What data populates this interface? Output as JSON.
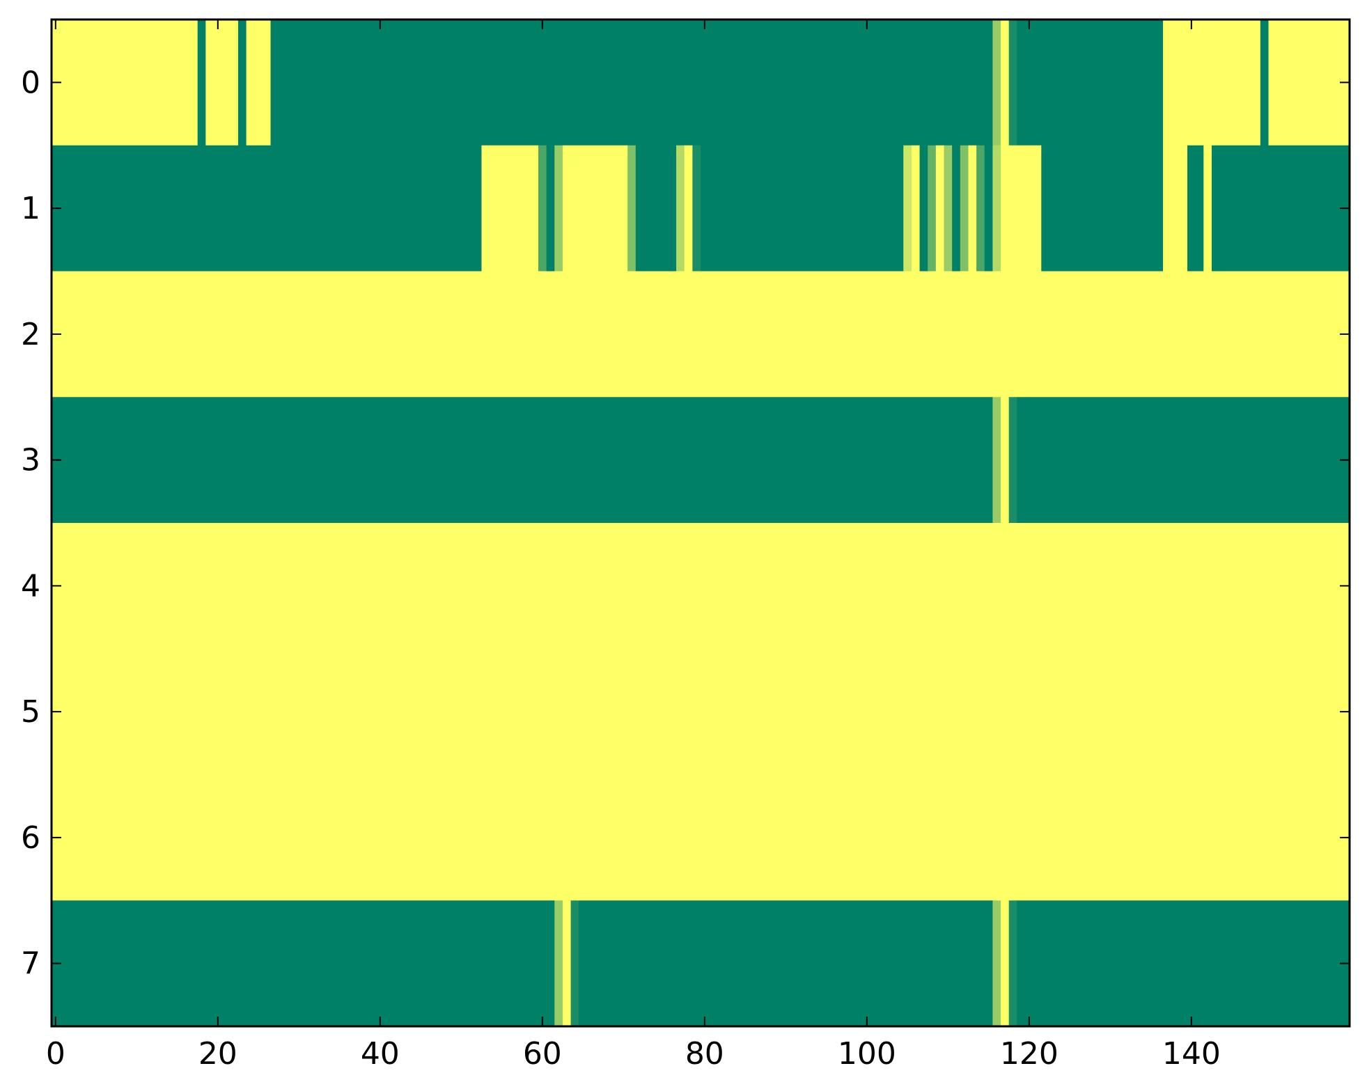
{
  "chart_data": {
    "type": "heatmap",
    "title": "",
    "xlabel": "",
    "ylabel": "",
    "x_range": [
      -0.5,
      159.5
    ],
    "y_range": [
      -0.5,
      7.5
    ],
    "y_inverted": true,
    "x_ticks": [
      0,
      20,
      40,
      60,
      80,
      100,
      120,
      140
    ],
    "x_tick_labels": [
      "0",
      "20",
      "40",
      "60",
      "80",
      "100",
      "120",
      "140"
    ],
    "y_ticks": [
      0,
      1,
      2,
      3,
      4,
      5,
      6,
      7
    ],
    "y_tick_labels": [
      "0",
      "1",
      "2",
      "3",
      "4",
      "5",
      "6",
      "7"
    ],
    "grid": false,
    "legend": "none",
    "colormap": "summer",
    "colors": {
      "low": "#008066",
      "high": "#ffff66"
    },
    "value_range": [
      0,
      1
    ],
    "n_columns": 160,
    "rows": [
      {
        "row": 0,
        "segments": [
          {
            "start": 0,
            "end": 17,
            "value": 1
          },
          {
            "start": 18,
            "end": 18,
            "value": 0
          },
          {
            "start": 19,
            "end": 22,
            "value": 1
          },
          {
            "start": 23,
            "end": 23,
            "value": 0
          },
          {
            "start": 24,
            "end": 26,
            "value": 1
          },
          {
            "start": 27,
            "end": 115,
            "value": 0
          },
          {
            "start": 116,
            "end": 116,
            "value": 0.6
          },
          {
            "start": 117,
            "end": 117,
            "value": 1
          },
          {
            "start": 118,
            "end": 118,
            "value": 0.1
          },
          {
            "start": 119,
            "end": 136,
            "value": 0
          },
          {
            "start": 137,
            "end": 148,
            "value": 1
          },
          {
            "start": 149,
            "end": 149,
            "value": 0
          },
          {
            "start": 150,
            "end": 159,
            "value": 1
          }
        ]
      },
      {
        "row": 1,
        "segments": [
          {
            "start": 0,
            "end": 52,
            "value": 0
          },
          {
            "start": 53,
            "end": 59,
            "value": 1
          },
          {
            "start": 60,
            "end": 60,
            "value": 0.3
          },
          {
            "start": 61,
            "end": 61,
            "value": 0
          },
          {
            "start": 62,
            "end": 62,
            "value": 0.6
          },
          {
            "start": 63,
            "end": 70,
            "value": 1
          },
          {
            "start": 71,
            "end": 71,
            "value": 0.5
          },
          {
            "start": 72,
            "end": 76,
            "value": 0
          },
          {
            "start": 77,
            "end": 77,
            "value": 0.7
          },
          {
            "start": 78,
            "end": 78,
            "value": 1
          },
          {
            "start": 79,
            "end": 79,
            "value": 0.1
          },
          {
            "start": 80,
            "end": 104,
            "value": 0
          },
          {
            "start": 105,
            "end": 105,
            "value": 0.8
          },
          {
            "start": 106,
            "end": 106,
            "value": 1
          },
          {
            "start": 107,
            "end": 107,
            "value": 0
          },
          {
            "start": 108,
            "end": 108,
            "value": 0.4
          },
          {
            "start": 109,
            "end": 109,
            "value": 1
          },
          {
            "start": 110,
            "end": 110,
            "value": 0.6
          },
          {
            "start": 111,
            "end": 111,
            "value": 0
          },
          {
            "start": 112,
            "end": 112,
            "value": 0.5
          },
          {
            "start": 113,
            "end": 113,
            "value": 1
          },
          {
            "start": 114,
            "end": 114,
            "value": 0.3
          },
          {
            "start": 115,
            "end": 115,
            "value": 0
          },
          {
            "start": 116,
            "end": 116,
            "value": 0.7
          },
          {
            "start": 117,
            "end": 121,
            "value": 1
          },
          {
            "start": 122,
            "end": 136,
            "value": 0
          },
          {
            "start": 137,
            "end": 139,
            "value": 1
          },
          {
            "start": 140,
            "end": 141,
            "value": 0
          },
          {
            "start": 142,
            "end": 142,
            "value": 1
          },
          {
            "start": 143,
            "end": 159,
            "value": 0
          }
        ]
      },
      {
        "row": 2,
        "segments": [
          {
            "start": 0,
            "end": 159,
            "value": 1
          }
        ]
      },
      {
        "row": 3,
        "segments": [
          {
            "start": 0,
            "end": 115,
            "value": 0
          },
          {
            "start": 116,
            "end": 116,
            "value": 0.6
          },
          {
            "start": 117,
            "end": 117,
            "value": 1
          },
          {
            "start": 118,
            "end": 118,
            "value": 0.1
          },
          {
            "start": 119,
            "end": 159,
            "value": 0
          }
        ]
      },
      {
        "row": 4,
        "segments": [
          {
            "start": 0,
            "end": 159,
            "value": 1
          }
        ]
      },
      {
        "row": 5,
        "segments": [
          {
            "start": 0,
            "end": 159,
            "value": 1
          }
        ]
      },
      {
        "row": 6,
        "segments": [
          {
            "start": 0,
            "end": 159,
            "value": 1
          }
        ]
      },
      {
        "row": 7,
        "segments": [
          {
            "start": 0,
            "end": 61,
            "value": 0
          },
          {
            "start": 62,
            "end": 62,
            "value": 0.6
          },
          {
            "start": 63,
            "end": 63,
            "value": 1
          },
          {
            "start": 64,
            "end": 64,
            "value": 0.1
          },
          {
            "start": 65,
            "end": 115,
            "value": 0
          },
          {
            "start": 116,
            "end": 116,
            "value": 0.6
          },
          {
            "start": 117,
            "end": 117,
            "value": 1
          },
          {
            "start": 118,
            "end": 118,
            "value": 0.1
          },
          {
            "start": 119,
            "end": 159,
            "value": 0
          }
        ]
      }
    ]
  }
}
